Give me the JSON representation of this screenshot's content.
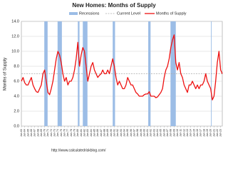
{
  "chart_data": {
    "type": "line",
    "title": "New Homes: Months of Supply",
    "y_label": "Months of Supply",
    "source": "http://www.calculatedriskblog.com/",
    "grid": true,
    "recessions": {
      "name": "Recessions",
      "color": "#9cbde6",
      "ranges": [
        [
          1969.9,
          1970.9
        ],
        [
          1973.9,
          1975.2
        ],
        [
          1980.0,
          1980.5
        ],
        [
          1981.5,
          1982.9
        ],
        [
          1990.5,
          1991.2
        ],
        [
          2001.2,
          2001.9
        ],
        [
          2007.9,
          2009.5
        ],
        [
          2020.1,
          2020.3
        ]
      ]
    },
    "current_level": {
      "name": "Current Level",
      "value": 7.0,
      "color": "#aaaaaa"
    },
    "x": [
      1963,
      1963.5,
      1964,
      1964.5,
      1965,
      1965.5,
      1966,
      1966.5,
      1967,
      1967.5,
      1968,
      1968.5,
      1969,
      1969.5,
      1970,
      1970.5,
      1971,
      1971.5,
      1972,
      1972.5,
      1973,
      1973.5,
      1974,
      1974.5,
      1975,
      1975.5,
      1976,
      1976.5,
      1977,
      1977.5,
      1978,
      1978.5,
      1979,
      1979.5,
      1980,
      1980.5,
      1981,
      1981.5,
      1982,
      1982.5,
      1983,
      1983.5,
      1984,
      1984.5,
      1985,
      1985.5,
      1986,
      1986.5,
      1987,
      1987.5,
      1988,
      1988.5,
      1989,
      1989.5,
      1990,
      1990.5,
      1991,
      1991.5,
      1992,
      1992.5,
      1993,
      1993.5,
      1994,
      1994.5,
      1995,
      1995.5,
      1996,
      1996.5,
      1997,
      1997.5,
      1998,
      1998.5,
      1999,
      1999.5,
      2000,
      2000.5,
      2001,
      2001.5,
      2002,
      2002.5,
      2003,
      2003.5,
      2004,
      2004.5,
      2005,
      2005.5,
      2006,
      2006.5,
      2007,
      2007.5,
      2008,
      2008.5,
      2009,
      2009.5,
      2010,
      2010.5,
      2011,
      2011.5,
      2012,
      2012.5,
      2013,
      2013.5,
      2014,
      2014.5,
      2015,
      2015.5,
      2016,
      2016.5,
      2017,
      2017.5,
      2018,
      2018.5,
      2019,
      2019.5,
      2020,
      2020.5,
      2021,
      2021.5,
      2022,
      2022.5,
      2023,
      2023.5
    ],
    "series": [
      {
        "name": "Months of Supply",
        "color": "#ee1111",
        "values": [
          6.0,
          6.5,
          5.8,
          5.5,
          5.5,
          6.0,
          6.5,
          5.5,
          5.0,
          4.6,
          4.5,
          5.0,
          5.5,
          7.0,
          7.5,
          6.0,
          4.5,
          4.2,
          5.0,
          6.0,
          7.5,
          9.0,
          10.0,
          9.5,
          8.5,
          7.0,
          6.0,
          6.5,
          5.5,
          6.0,
          6.0,
          6.5,
          7.5,
          9.0,
          11.2,
          8.0,
          9.5,
          10.5,
          10.0,
          8.0,
          6.0,
          7.0,
          8.0,
          8.5,
          7.5,
          7.0,
          6.5,
          6.8,
          7.0,
          7.5,
          7.0,
          7.0,
          7.5,
          7.0,
          8.0,
          9.0,
          8.0,
          6.5,
          5.5,
          6.0,
          5.5,
          5.0,
          5.0,
          5.5,
          6.5,
          6.0,
          5.5,
          5.5,
          5.0,
          4.5,
          4.3,
          4.0,
          4.0,
          4.0,
          4.2,
          4.3,
          4.3,
          4.6,
          4.0,
          4.0,
          4.0,
          3.8,
          3.9,
          4.2,
          4.5,
          5.0,
          6.5,
          7.5,
          8.0,
          9.0,
          10.5,
          11.5,
          12.2,
          8.5,
          7.5,
          8.5,
          7.0,
          6.5,
          5.5,
          5.0,
          4.5,
          5.5,
          5.5,
          6.0,
          5.5,
          5.0,
          5.5,
          5.0,
          5.5,
          5.5,
          6.0,
          7.0,
          6.0,
          5.5,
          5.0,
          3.5,
          4.0,
          6.0,
          8.5,
          10.0,
          7.5,
          7.0
        ]
      }
    ],
    "xlim": [
      1963,
      2023.5
    ],
    "ylim": [
      0,
      14
    ],
    "yticks": [
      {
        "value": 0,
        "label": "0.0"
      },
      {
        "value": 2,
        "label": "2.0"
      },
      {
        "value": 4,
        "label": "4.0"
      },
      {
        "value": 6,
        "label": "6.0"
      },
      {
        "value": 8,
        "label": "8.0"
      },
      {
        "value": 10,
        "label": "10.0"
      },
      {
        "value": 12,
        "label": "12.0"
      },
      {
        "value": 14,
        "label": "14.0"
      }
    ],
    "xticks": [
      {
        "value": 1963,
        "label": "Jan-63"
      },
      {
        "value": 1964,
        "label": "Jan-64"
      },
      {
        "value": 1965,
        "label": "Jan-65"
      },
      {
        "value": 1966,
        "label": "Jan-66"
      },
      {
        "value": 1967,
        "label": "Jan-67"
      },
      {
        "value": 1968,
        "label": "Jan-68"
      },
      {
        "value": 1969,
        "label": "Jan-69"
      },
      {
        "value": 1970,
        "label": "Jan-70"
      },
      {
        "value": 1971,
        "label": "Jan-71"
      },
      {
        "value": 1972,
        "label": "Jan-72"
      },
      {
        "value": 1973,
        "label": "Jan-73"
      },
      {
        "value": 1974,
        "label": "Jan-74"
      },
      {
        "value": 1975,
        "label": "Jan-75"
      },
      {
        "value": 1976,
        "label": "Jan-76"
      },
      {
        "value": 1977,
        "label": "Jan-77"
      },
      {
        "value": 1978,
        "label": "Jan-78"
      },
      {
        "value": 1979,
        "label": "Jan-79"
      },
      {
        "value": 1980,
        "label": "Jan-80"
      },
      {
        "value": 1981,
        "label": "Jan-81"
      },
      {
        "value": 1982,
        "label": "Jan-82"
      },
      {
        "value": 1983,
        "label": "Jan-83"
      },
      {
        "value": 1984,
        "label": "Jan-84"
      },
      {
        "value": 1985,
        "label": "Jan-85"
      },
      {
        "value": 1986,
        "label": "Jan-86"
      },
      {
        "value": 1987,
        "label": "Jan-87"
      },
      {
        "value": 1988,
        "label": "Jan-88"
      },
      {
        "value": 1989,
        "label": "Jan-89"
      },
      {
        "value": 1990,
        "label": "Jan-90"
      },
      {
        "value": 1991,
        "label": "Jan-91"
      },
      {
        "value": 1992,
        "label": "Jan-92"
      },
      {
        "value": 1993,
        "label": "Jan-93"
      },
      {
        "value": 1994,
        "label": "Jan-94"
      },
      {
        "value": 1995,
        "label": "Jan-95"
      },
      {
        "value": 1996,
        "label": "Jan-96"
      },
      {
        "value": 1997,
        "label": "Jan-97"
      },
      {
        "value": 1998,
        "label": "Jan-98"
      },
      {
        "value": 1999,
        "label": "Jan-99"
      },
      {
        "value": 2000,
        "label": "Jan-00"
      },
      {
        "value": 2001,
        "label": "Jan-01"
      },
      {
        "value": 2002,
        "label": "Jan-02"
      },
      {
        "value": 2003,
        "label": "Jan-03"
      },
      {
        "value": 2004,
        "label": "Jan-04"
      },
      {
        "value": 2005,
        "label": "Jan-05"
      },
      {
        "value": 2006,
        "label": "Jan-06"
      },
      {
        "value": 2007,
        "label": "Jan-07"
      },
      {
        "value": 2008,
        "label": "Jan-08"
      },
      {
        "value": 2009,
        "label": "Jan-09"
      },
      {
        "value": 2010,
        "label": "Jan-10"
      },
      {
        "value": 2011,
        "label": "Jan-11"
      },
      {
        "value": 2012,
        "label": "Jan-12"
      },
      {
        "value": 2013,
        "label": "Jan-13"
      },
      {
        "value": 2014,
        "label": "Jan-14"
      },
      {
        "value": 2015,
        "label": "Jan-15"
      },
      {
        "value": 2016,
        "label": "Jan-16"
      },
      {
        "value": 2017,
        "label": "Jan-17"
      },
      {
        "value": 2018,
        "label": "Jan-18"
      },
      {
        "value": 2019,
        "label": "Jan-19"
      },
      {
        "value": 2020,
        "label": "Jan-20"
      },
      {
        "value": 2021,
        "label": "Jan-21"
      },
      {
        "value": 2022,
        "label": "Jan-22"
      },
      {
        "value": 2023,
        "label": "Jan-23"
      }
    ]
  }
}
